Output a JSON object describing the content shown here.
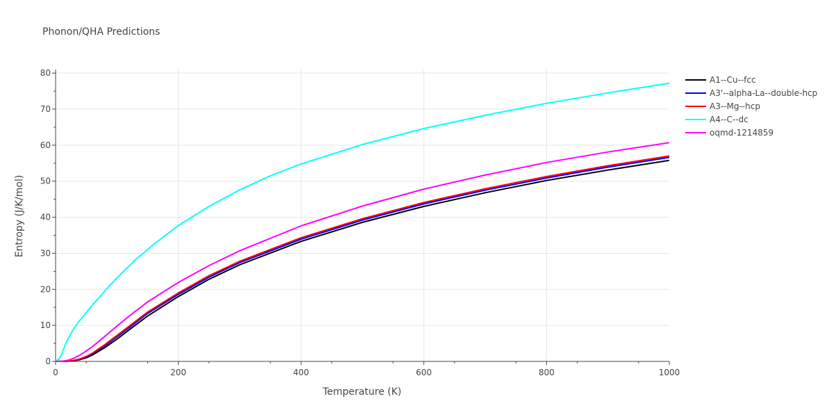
{
  "chart_data": {
    "type": "line",
    "title": "Phonon/QHA Predictions",
    "xlabel": "Temperature (K)",
    "ylabel": "Entropy (J/K/mol)",
    "xlim": [
      0,
      1000
    ],
    "ylim": [
      0,
      81
    ],
    "xticks": [
      0,
      200,
      400,
      600,
      800,
      1000
    ],
    "yticks": [
      0,
      10,
      20,
      30,
      40,
      50,
      60,
      70,
      80
    ],
    "grid": true,
    "legend_position": "top-right",
    "series": [
      {
        "name": "A1--Cu--fcc",
        "color": "#000000",
        "x": [
          0,
          20,
          30,
          40,
          50,
          60,
          80,
          100,
          120,
          150,
          200,
          250,
          300,
          400,
          500,
          600,
          700,
          800,
          900,
          1000
        ],
        "y": [
          0,
          0.05,
          0.2,
          0.5,
          1.0,
          1.8,
          3.8,
          6.2,
          8.8,
          12.6,
          18.0,
          22.8,
          26.8,
          33.3,
          38.6,
          43.0,
          46.8,
          50.2,
          53.1,
          55.8
        ]
      },
      {
        "name": "A3'--alpha-La--double-hcp",
        "color": "#0000ff",
        "x": [
          0,
          20,
          30,
          40,
          50,
          60,
          80,
          100,
          120,
          150,
          200,
          250,
          300,
          400,
          500,
          600,
          700,
          800,
          900,
          1000
        ],
        "y": [
          0,
          0.07,
          0.25,
          0.6,
          1.2,
          2.1,
          4.3,
          6.8,
          9.4,
          13.3,
          18.6,
          23.4,
          27.4,
          33.9,
          39.2,
          43.7,
          47.5,
          50.9,
          53.9,
          56.6
        ]
      },
      {
        "name": "A3--Mg--hcp",
        "color": "#ff0000",
        "x": [
          0,
          20,
          30,
          40,
          50,
          60,
          80,
          100,
          120,
          150,
          200,
          250,
          300,
          400,
          500,
          600,
          700,
          800,
          900,
          1000
        ],
        "y": [
          0,
          0.08,
          0.3,
          0.7,
          1.4,
          2.3,
          4.6,
          7.2,
          9.8,
          13.7,
          19.0,
          23.8,
          27.8,
          34.3,
          39.6,
          44.1,
          47.9,
          51.3,
          54.3,
          57.0
        ]
      },
      {
        "name": "A4--C--dc",
        "color": "#00ffff",
        "x": [
          0,
          5,
          10,
          15,
          20,
          30,
          40,
          60,
          80,
          100,
          130,
          160,
          200,
          250,
          300,
          350,
          400,
          500,
          600,
          700,
          800,
          900,
          1000
        ],
        "y": [
          0,
          0.6,
          2.0,
          4.3,
          6.2,
          9.2,
          11.5,
          15.6,
          19.5,
          23.2,
          28.2,
          32.5,
          37.7,
          43.0,
          47.6,
          51.5,
          54.8,
          60.2,
          64.6,
          68.3,
          71.6,
          74.5,
          77.2
        ]
      },
      {
        "name": "oqmd-1214859",
        "color": "#ff00ff",
        "x": [
          0,
          10,
          20,
          30,
          40,
          50,
          60,
          80,
          100,
          120,
          150,
          200,
          250,
          300,
          400,
          500,
          600,
          700,
          800,
          900,
          1000
        ],
        "y": [
          0,
          0.02,
          0.3,
          0.9,
          1.8,
          2.9,
          4.1,
          6.9,
          9.8,
          12.6,
          16.5,
          21.9,
          26.6,
          30.7,
          37.6,
          43.1,
          47.8,
          51.7,
          55.2,
          58.1,
          60.7
        ]
      }
    ]
  }
}
